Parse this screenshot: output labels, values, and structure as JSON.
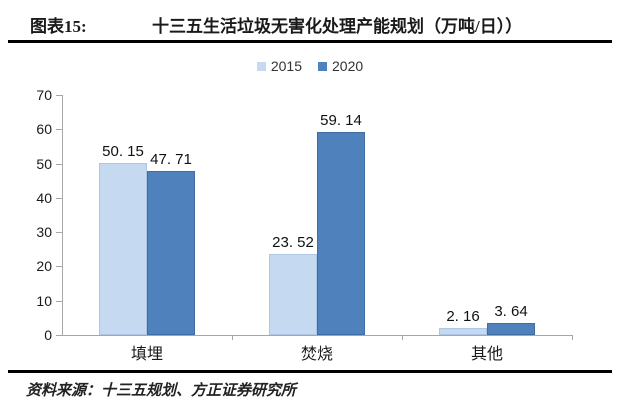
{
  "header": {
    "figure_label": "图表15:",
    "title": "十三五生活垃圾无害化处理产能规划（万吨/日））"
  },
  "footer": {
    "source": "资料来源：十三五规划、方正证券研究所"
  },
  "colors": {
    "series_2015": "#C5D9F1",
    "series_2020": "#4F81BD",
    "axis": "#A6A6A6",
    "rule": "#000000",
    "text": "#1A1A1A"
  },
  "chart_data": {
    "type": "bar",
    "title": "十三五生活垃圾无害化处理产能规划（万吨/日））",
    "xlabel": "",
    "ylabel": "",
    "categories": [
      "填埋",
      "焚烧",
      "其他"
    ],
    "series": [
      {
        "name": "2015",
        "color": "#C5D9F1",
        "values": [
          50.15,
          23.52,
          2.16
        ],
        "labels": [
          "50. 15",
          "23. 52",
          "2. 16"
        ]
      },
      {
        "name": "2020",
        "color": "#4F81BD",
        "values": [
          47.71,
          59.14,
          3.64
        ],
        "labels": [
          "47. 71",
          "59. 14",
          "3. 64"
        ]
      }
    ],
    "ylim": [
      0,
      70
    ],
    "ytick_step": 10,
    "yticks": [
      0,
      10,
      20,
      30,
      40,
      50,
      60,
      70
    ],
    "grid": false,
    "legend_position": "top-center",
    "unit": "万吨/日"
  }
}
